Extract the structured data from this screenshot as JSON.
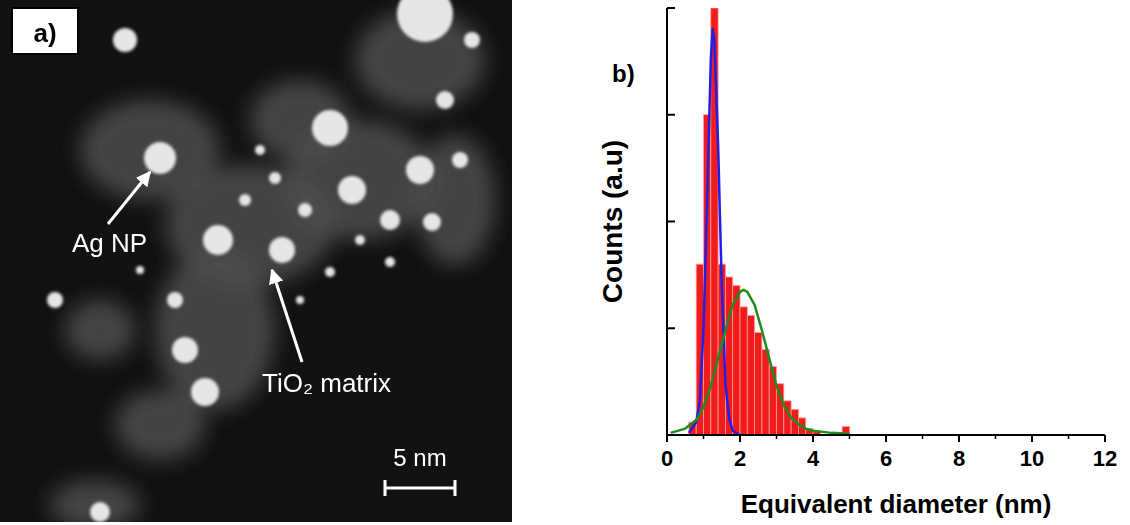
{
  "image_panel": {
    "label": "a)",
    "annotations": [
      "Ag NP",
      "TiO₂ matrix"
    ],
    "scale_bar": "5 nm"
  },
  "chart_data": {
    "type": "histogram",
    "panel_label": "b)",
    "x_label": "Equivalent diameter (nm)",
    "y_label": "Counts (a.u)",
    "bins": [
      0.6,
      0.8,
      1.0,
      1.2,
      1.4,
      1.6,
      1.8,
      2.0,
      2.2,
      2.4,
      2.6,
      2.8,
      3.0,
      3.2,
      3.4,
      3.6,
      3.8,
      4.0,
      4.2,
      4.4,
      4.6,
      4.8,
      5.0
    ],
    "counts": [
      3,
      40,
      75,
      100,
      40,
      37,
      35,
      30,
      28,
      24,
      20,
      16,
      12,
      8,
      6,
      4,
      1.5,
      1,
      0,
      0,
      0,
      2
    ],
    "color": "#f01c1c",
    "xlim": [
      0,
      12
    ],
    "xticks": [
      0,
      2,
      4,
      6,
      8,
      10,
      12
    ],
    "ylim": [
      0,
      100
    ],
    "yticks": [
      0,
      25,
      50,
      75,
      100
    ],
    "tick_labels": "x",
    "series": [
      {
        "type": "line",
        "color": "#1f1fe6",
        "x": [
          0.6,
          0.8,
          0.9,
          1.0,
          1.1,
          1.2,
          1.25,
          1.3,
          1.4,
          1.5,
          1.6,
          1.7,
          1.8,
          2.0
        ],
        "values": [
          0.5,
          3,
          8,
          25,
          55,
          88,
          95,
          92,
          68,
          35,
          12,
          4,
          1,
          0
        ]
      },
      {
        "type": "line",
        "color": "#1e8c1e",
        "x": [
          0.1,
          0.5,
          0.8,
          1.0,
          1.2,
          1.4,
          1.6,
          1.8,
          2.0,
          2.1,
          2.2,
          2.4,
          2.6,
          2.8,
          3.0,
          3.2,
          3.4,
          3.6,
          3.8,
          4.0,
          4.5,
          5.0
        ],
        "values": [
          0.5,
          1.5,
          3.5,
          6.5,
          11.5,
          18,
          24.5,
          30.5,
          33.5,
          34,
          33.5,
          30.5,
          24.5,
          18,
          11.5,
          7,
          4,
          2.5,
          1.5,
          1,
          0.5,
          0.3
        ]
      }
    ]
  }
}
